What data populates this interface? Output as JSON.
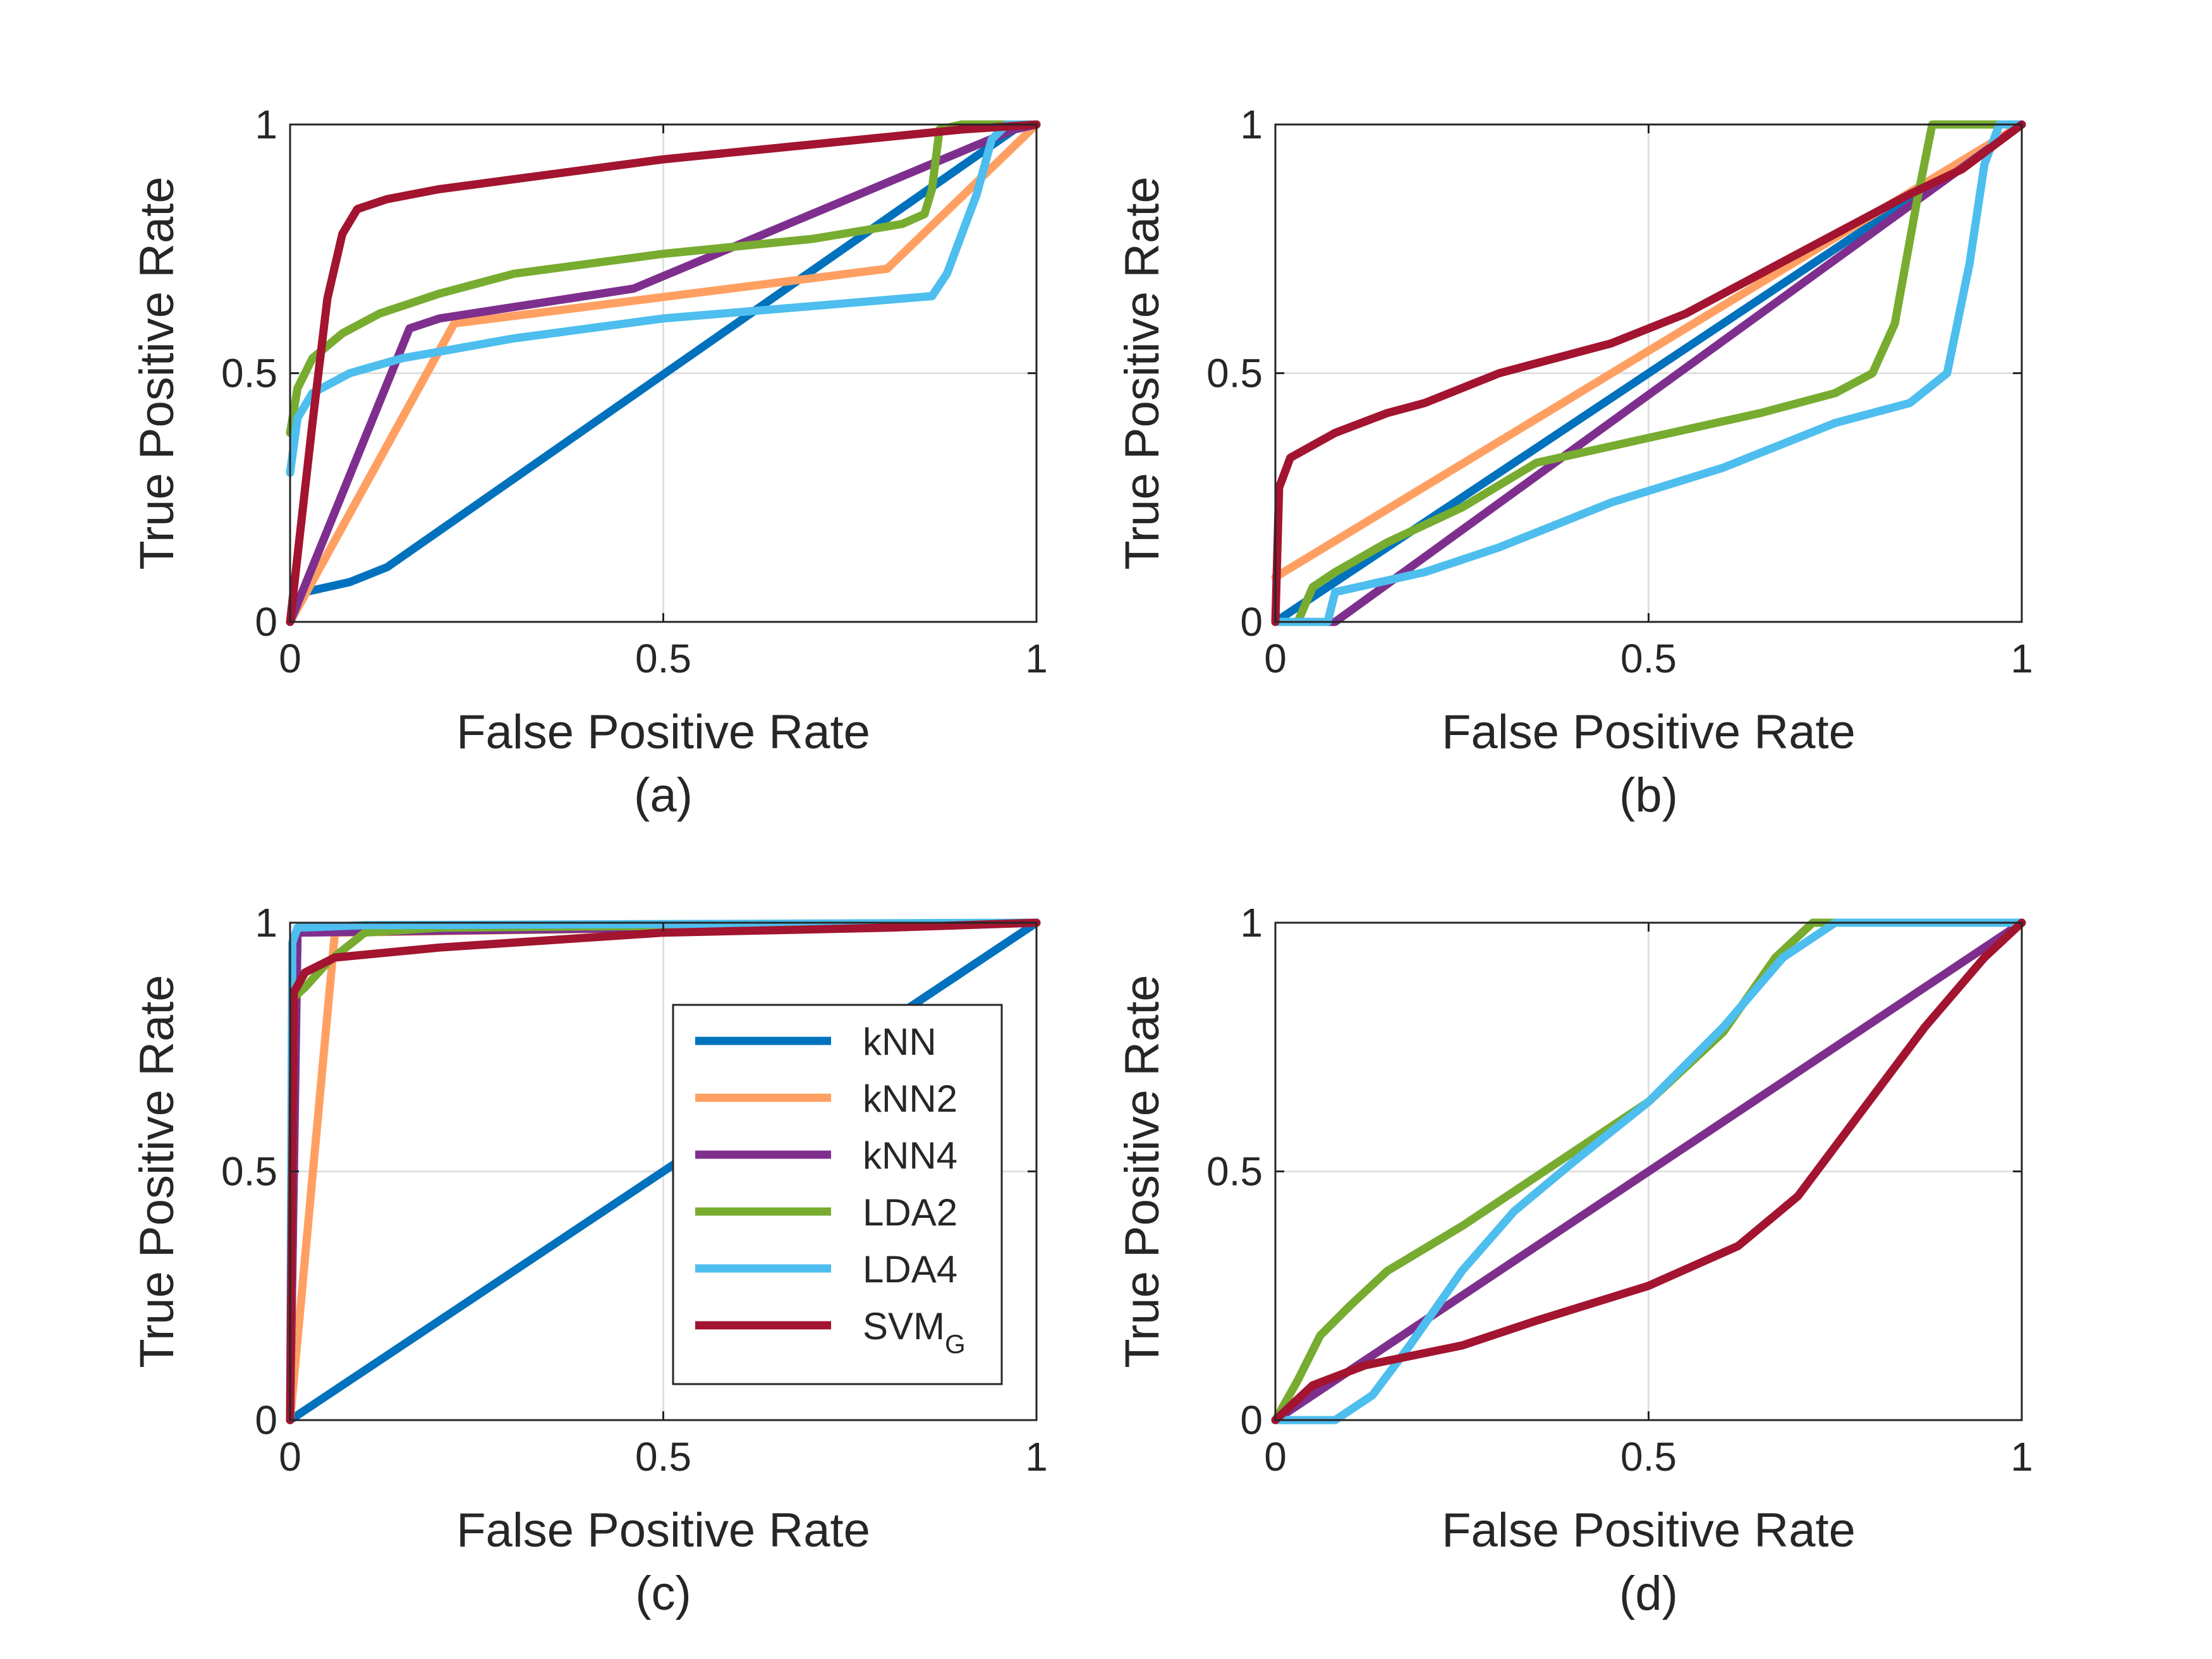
{
  "colors": {
    "kNN": "#0072BD",
    "kNN2": "#FFA062",
    "kNN4": "#7E2F8E",
    "LDA2": "#77AC30",
    "LDA4": "#4DBEEE",
    "SVMG": "#A2142F",
    "grid": "#E1E1E1",
    "axis": "#262626"
  },
  "chart_data": [
    {
      "id": "a",
      "caption": "(a)",
      "type": "line",
      "xlabel": "False Positive Rate",
      "ylabel": "True Positive Rate",
      "xlim": [
        0,
        1
      ],
      "ylim": [
        0,
        1
      ],
      "xticks": [
        0,
        0.5,
        1
      ],
      "xtick_labels": [
        "0",
        "0.5",
        "1"
      ],
      "yticks": [
        0,
        0.5,
        1
      ],
      "ytick_labels": [
        "0",
        "0.5",
        "1"
      ],
      "grid": true,
      "legend": false,
      "series": [
        {
          "key": "kNN",
          "points": [
            [
              0,
              0
            ],
            [
              0.02,
              0.06
            ],
            [
              0.08,
              0.08
            ],
            [
              0.13,
              0.11
            ],
            [
              0.98,
              1
            ],
            [
              1,
              1
            ]
          ]
        },
        {
          "key": "kNN2",
          "points": [
            [
              0,
              0
            ],
            [
              0.22,
              0.6
            ],
            [
              0.8,
              0.71
            ],
            [
              1,
              1
            ]
          ]
        },
        {
          "key": "kNN4",
          "points": [
            [
              0,
              0
            ],
            [
              0.16,
              0.59
            ],
            [
              0.2,
              0.61
            ],
            [
              0.46,
              0.67
            ],
            [
              0.97,
              0.99
            ],
            [
              1,
              1
            ]
          ]
        },
        {
          "key": "LDA2",
          "points": [
            [
              0,
              0.38
            ],
            [
              0.01,
              0.47
            ],
            [
              0.03,
              0.53
            ],
            [
              0.07,
              0.58
            ],
            [
              0.12,
              0.62
            ],
            [
              0.2,
              0.66
            ],
            [
              0.3,
              0.7
            ],
            [
              0.5,
              0.74
            ],
            [
              0.7,
              0.77
            ],
            [
              0.82,
              0.8
            ],
            [
              0.85,
              0.82
            ],
            [
              0.86,
              0.87
            ],
            [
              0.87,
              0.99
            ],
            [
              0.9,
              1
            ],
            [
              1,
              1
            ]
          ]
        },
        {
          "key": "LDA4",
          "points": [
            [
              0,
              0.3
            ],
            [
              0.01,
              0.41
            ],
            [
              0.03,
              0.46
            ],
            [
              0.08,
              0.5
            ],
            [
              0.15,
              0.53
            ],
            [
              0.3,
              0.57
            ],
            [
              0.5,
              0.61
            ],
            [
              0.7,
              0.635
            ],
            [
              0.86,
              0.655
            ],
            [
              0.88,
              0.7
            ],
            [
              0.9,
              0.78
            ],
            [
              0.92,
              0.86
            ],
            [
              0.94,
              0.97
            ],
            [
              0.96,
              1
            ],
            [
              1,
              1
            ]
          ]
        },
        {
          "key": "SVMG",
          "points": [
            [
              0,
              0
            ],
            [
              0.03,
              0.4
            ],
            [
              0.05,
              0.65
            ],
            [
              0.07,
              0.78
            ],
            [
              0.09,
              0.83
            ],
            [
              0.13,
              0.85
            ],
            [
              0.2,
              0.87
            ],
            [
              0.3,
              0.89
            ],
            [
              0.5,
              0.93
            ],
            [
              0.7,
              0.96
            ],
            [
              0.9,
              0.99
            ],
            [
              1,
              1
            ]
          ]
        }
      ]
    },
    {
      "id": "b",
      "caption": "(b)",
      "type": "line",
      "xlabel": "False Positive Rate",
      "ylabel": "True Positive Rate",
      "xlim": [
        0,
        1
      ],
      "ylim": [
        0,
        1
      ],
      "xticks": [
        0,
        0.5,
        1
      ],
      "xtick_labels": [
        "0",
        "0.5",
        "1"
      ],
      "yticks": [
        0,
        0.5,
        1
      ],
      "ytick_labels": [
        "0",
        "0.5",
        "1"
      ],
      "grid": true,
      "legend": false,
      "series": [
        {
          "key": "kNN",
          "points": [
            [
              0,
              0
            ],
            [
              0.01,
              0.01
            ],
            [
              1,
              1
            ]
          ]
        },
        {
          "key": "kNN2",
          "points": [
            [
              0,
              0.09
            ],
            [
              1,
              1
            ]
          ]
        },
        {
          "key": "kNN4",
          "points": [
            [
              0,
              0
            ],
            [
              0.08,
              0
            ],
            [
              1,
              1
            ]
          ]
        },
        {
          "key": "LDA2",
          "points": [
            [
              0,
              0
            ],
            [
              0.03,
              0
            ],
            [
              0.05,
              0.07
            ],
            [
              0.08,
              0.1
            ],
            [
              0.15,
              0.16
            ],
            [
              0.25,
              0.23
            ],
            [
              0.35,
              0.32
            ],
            [
              0.5,
              0.37
            ],
            [
              0.65,
              0.42
            ],
            [
              0.75,
              0.46
            ],
            [
              0.8,
              0.5
            ],
            [
              0.83,
              0.6
            ],
            [
              0.86,
              0.85
            ],
            [
              0.88,
              1
            ],
            [
              1,
              1
            ]
          ]
        },
        {
          "key": "LDA4",
          "points": [
            [
              0,
              0
            ],
            [
              0.07,
              0
            ],
            [
              0.08,
              0.06
            ],
            [
              0.2,
              0.1
            ],
            [
              0.3,
              0.15
            ],
            [
              0.45,
              0.24
            ],
            [
              0.6,
              0.31
            ],
            [
              0.75,
              0.4
            ],
            [
              0.85,
              0.44
            ],
            [
              0.9,
              0.5
            ],
            [
              0.93,
              0.72
            ],
            [
              0.95,
              0.92
            ],
            [
              0.97,
              1
            ],
            [
              1,
              1
            ]
          ]
        },
        {
          "key": "SVMG",
          "points": [
            [
              0,
              0
            ],
            [
              0.005,
              0.27
            ],
            [
              0.02,
              0.33
            ],
            [
              0.08,
              0.38
            ],
            [
              0.15,
              0.42
            ],
            [
              0.2,
              0.44
            ],
            [
              0.3,
              0.5
            ],
            [
              0.45,
              0.56
            ],
            [
              0.55,
              0.62
            ],
            [
              0.65,
              0.7
            ],
            [
              0.75,
              0.78
            ],
            [
              0.85,
              0.86
            ],
            [
              0.92,
              0.91
            ],
            [
              1,
              1
            ]
          ]
        }
      ]
    },
    {
      "id": "c",
      "caption": "(c)",
      "type": "line",
      "xlabel": "False Positive Rate",
      "ylabel": "True Positive Rate",
      "xlim": [
        0,
        1
      ],
      "ylim": [
        0,
        1
      ],
      "xticks": [
        0,
        0.5,
        1
      ],
      "xtick_labels": [
        "0",
        "0.5",
        "1"
      ],
      "yticks": [
        0,
        0.5,
        1
      ],
      "ytick_labels": [
        "0",
        "0.5",
        "1"
      ],
      "grid": true,
      "legend": true,
      "series": [
        {
          "key": "kNN",
          "points": [
            [
              0,
              0
            ],
            [
              1,
              1
            ]
          ]
        },
        {
          "key": "kNN2",
          "points": [
            [
              0,
              0
            ],
            [
              0.06,
              0.98
            ],
            [
              1,
              1
            ]
          ]
        },
        {
          "key": "kNN4",
          "points": [
            [
              0,
              0
            ],
            [
              0.01,
              0.98
            ],
            [
              1,
              1
            ]
          ]
        },
        {
          "key": "LDA2",
          "points": [
            [
              0,
              0
            ],
            [
              0.005,
              0.85
            ],
            [
              0.02,
              0.87
            ],
            [
              0.05,
              0.92
            ],
            [
              0.1,
              0.98
            ],
            [
              0.2,
              0.99
            ],
            [
              1,
              1
            ]
          ]
        },
        {
          "key": "LDA4",
          "points": [
            [
              0,
              0
            ],
            [
              0.003,
              0.96
            ],
            [
              0.01,
              0.99
            ],
            [
              0.1,
              0.995
            ],
            [
              1,
              1
            ]
          ]
        },
        {
          "key": "SVMG",
          "points": [
            [
              0,
              0
            ],
            [
              0.005,
              0.86
            ],
            [
              0.02,
              0.9
            ],
            [
              0.06,
              0.93
            ],
            [
              0.2,
              0.95
            ],
            [
              0.5,
              0.98
            ],
            [
              0.8,
              0.99
            ],
            [
              1,
              1
            ]
          ]
        }
      ]
    },
    {
      "id": "d",
      "caption": "(d)",
      "type": "line",
      "xlabel": "False Positive Rate",
      "ylabel": "True Positive Rate",
      "xlim": [
        0,
        1
      ],
      "ylim": [
        0,
        1
      ],
      "xticks": [
        0,
        0.5,
        1
      ],
      "xtick_labels": [
        "0",
        "0.5",
        "1"
      ],
      "yticks": [
        0,
        0.5,
        1
      ],
      "ytick_labels": [
        "0",
        "0.5",
        "1"
      ],
      "grid": true,
      "legend": false,
      "series": [
        {
          "key": "kNN",
          "points": [
            [
              0,
              0
            ],
            [
              1,
              1
            ]
          ]
        },
        {
          "key": "kNN2",
          "points": [
            [
              0,
              0
            ],
            [
              1,
              1
            ]
          ]
        },
        {
          "key": "kNN4",
          "points": [
            [
              0,
              0
            ],
            [
              1,
              1
            ]
          ]
        },
        {
          "key": "LDA2",
          "points": [
            [
              0,
              0
            ],
            [
              0.03,
              0.08
            ],
            [
              0.06,
              0.17
            ],
            [
              0.1,
              0.23
            ],
            [
              0.15,
              0.3
            ],
            [
              0.25,
              0.39
            ],
            [
              0.35,
              0.49
            ],
            [
              0.5,
              0.64
            ],
            [
              0.6,
              0.78
            ],
            [
              0.67,
              0.93
            ],
            [
              0.72,
              1
            ],
            [
              1,
              1
            ]
          ]
        },
        {
          "key": "LDA4",
          "points": [
            [
              0,
              0
            ],
            [
              0.08,
              0
            ],
            [
              0.13,
              0.05
            ],
            [
              0.18,
              0.15
            ],
            [
              0.25,
              0.3
            ],
            [
              0.32,
              0.42
            ],
            [
              0.4,
              0.52
            ],
            [
              0.5,
              0.64
            ],
            [
              0.6,
              0.79
            ],
            [
              0.68,
              0.93
            ],
            [
              0.75,
              1
            ],
            [
              1,
              1
            ]
          ]
        },
        {
          "key": "SVMG",
          "points": [
            [
              0,
              0
            ],
            [
              0.05,
              0.07
            ],
            [
              0.12,
              0.11
            ],
            [
              0.25,
              0.15
            ],
            [
              0.35,
              0.2
            ],
            [
              0.5,
              0.27
            ],
            [
              0.62,
              0.35
            ],
            [
              0.7,
              0.45
            ],
            [
              0.78,
              0.61
            ],
            [
              0.87,
              0.79
            ],
            [
              0.95,
              0.93
            ],
            [
              1,
              1
            ]
          ]
        }
      ]
    }
  ],
  "legend": {
    "entries": [
      {
        "key": "kNN",
        "label": "kNN"
      },
      {
        "key": "kNN2",
        "label": "kNN2"
      },
      {
        "key": "kNN4",
        "label": "kNN4"
      },
      {
        "key": "LDA2",
        "label": "LDA2"
      },
      {
        "key": "LDA4",
        "label": "LDA4"
      },
      {
        "key": "SVMG",
        "label": "SVM",
        "subscript": "G"
      }
    ]
  }
}
